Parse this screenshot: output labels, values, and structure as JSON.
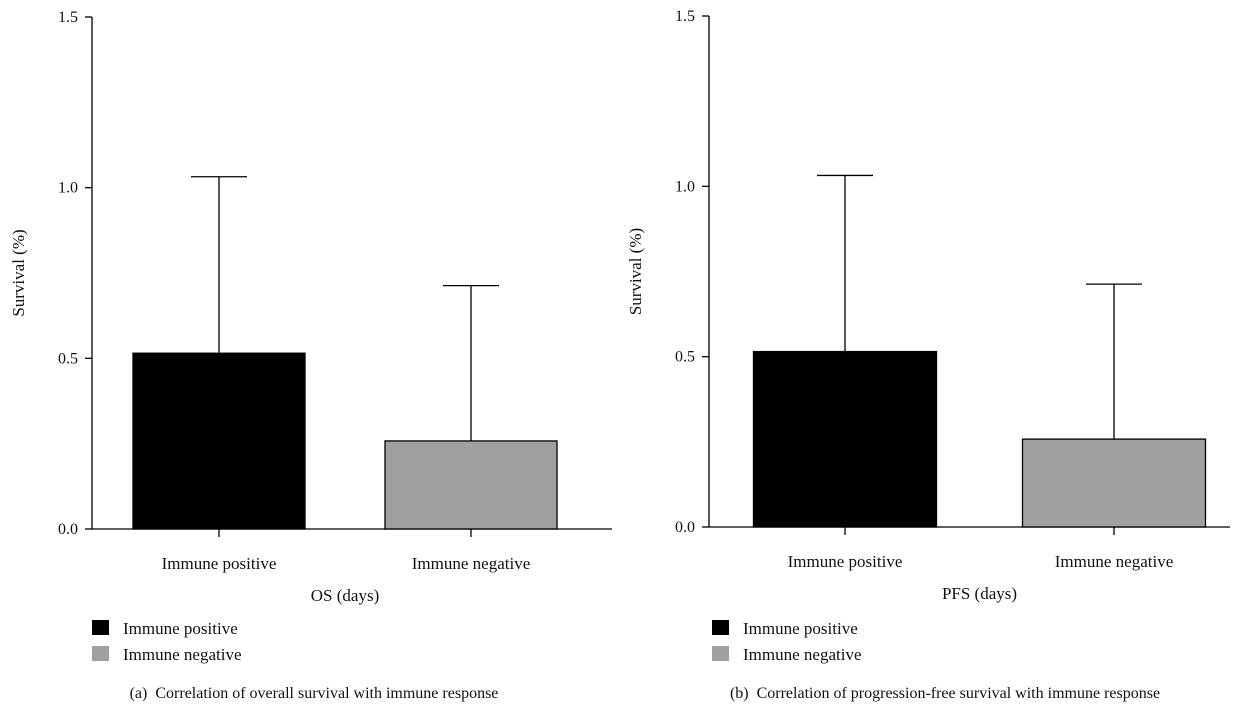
{
  "chart_data": [
    {
      "type": "bar",
      "panel": "(a)",
      "caption": "Correlation of overall survival with immune response",
      "categories": [
        "Immune positive",
        "Immune negative"
      ],
      "values": [
        0.515,
        0.258
      ],
      "error_upper": [
        1.032,
        0.713
      ],
      "colors": [
        "#000000",
        "#a0a0a2"
      ],
      "xlabel": "OS (days)",
      "ylabel": "Survival (%)",
      "ylim": [
        0,
        1.5
      ],
      "yticks": [
        "0.0",
        "0.5",
        "1.0",
        "1.5"
      ],
      "legend": [
        "Immune positive",
        "Immune negative"
      ],
      "legend_placement": "bottom-left"
    },
    {
      "type": "bar",
      "panel": "(b)",
      "caption": "Correlation of progression-free survival with immune response",
      "categories": [
        "Immune positive",
        "Immune negative"
      ],
      "values": [
        0.515,
        0.258
      ],
      "error_upper": [
        1.032,
        0.713
      ],
      "colors": [
        "#000000",
        "#a0a0a2"
      ],
      "xlabel": "PFS (days)",
      "ylabel": "Survival (%)",
      "ylim": [
        0,
        1.5
      ],
      "yticks": [
        "0.0",
        "0.5",
        "1.0",
        "1.5"
      ],
      "legend": [
        "Immune positive",
        "Immune negative"
      ],
      "legend_placement": "bottom-left"
    }
  ]
}
